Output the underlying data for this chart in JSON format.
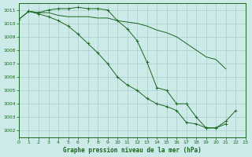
{
  "title": "Graphe pression niveau de la mer (hPa)",
  "background_color": "#cceae7",
  "grid_color": "#aacccc",
  "line_color": "#1a6620",
  "xlim": [
    0,
    23
  ],
  "ylim": [
    1001.5,
    1011.5
  ],
  "yticks": [
    1002,
    1003,
    1004,
    1005,
    1006,
    1007,
    1008,
    1009,
    1010,
    1011
  ],
  "xticks": [
    0,
    1,
    2,
    3,
    4,
    5,
    6,
    7,
    8,
    9,
    10,
    11,
    12,
    13,
    14,
    15,
    16,
    17,
    18,
    19,
    20,
    21,
    22,
    23
  ],
  "series": [
    {
      "x": [
        0,
        1,
        2,
        3,
        4,
        5,
        6,
        7,
        8,
        9,
        10,
        11,
        12,
        13,
        14,
        15,
        16,
        17,
        18,
        19,
        20,
        21,
        22
      ],
      "y": [
        1010.3,
        1010.9,
        1010.8,
        1010.8,
        1010.6,
        1010.5,
        1010.5,
        1010.5,
        1010.4,
        1010.4,
        1010.2,
        1010.1,
        1010.0,
        1009.8,
        1009.5,
        1009.3,
        1009.0,
        1008.5,
        1008.0,
        1007.5,
        1007.3,
        1006.6,
        null
      ],
      "marker": false
    },
    {
      "x": [
        1,
        2,
        3,
        4,
        5,
        6,
        7,
        8,
        9,
        10,
        11,
        12,
        13,
        14,
        15,
        16,
        17,
        18,
        19,
        20,
        21,
        22
      ],
      "y": [
        1010.9,
        1010.8,
        1011.0,
        1011.1,
        1011.1,
        1011.2,
        1011.1,
        1011.1,
        1011.0,
        1010.2,
        1009.6,
        1008.7,
        1007.1,
        1005.2,
        1005.0,
        1004.0,
        1004.0,
        1003.0,
        1002.2,
        1002.2,
        1002.7,
        1003.5
      ],
      "marker": true
    },
    {
      "x": [
        0,
        1,
        2,
        3,
        4,
        5,
        6,
        7,
        8,
        9,
        10,
        11,
        12,
        13,
        14,
        15,
        16,
        17,
        18,
        19,
        20,
        21
      ],
      "y": [
        1010.3,
        1010.9,
        1010.7,
        1010.5,
        1010.2,
        1009.8,
        1009.2,
        1008.5,
        1007.8,
        1007.0,
        1006.0,
        1005.4,
        1005.0,
        1004.4,
        1004.0,
        1003.8,
        1003.5,
        1002.6,
        1002.5,
        1002.2,
        1002.2,
        1002.5
      ],
      "marker": true
    }
  ]
}
